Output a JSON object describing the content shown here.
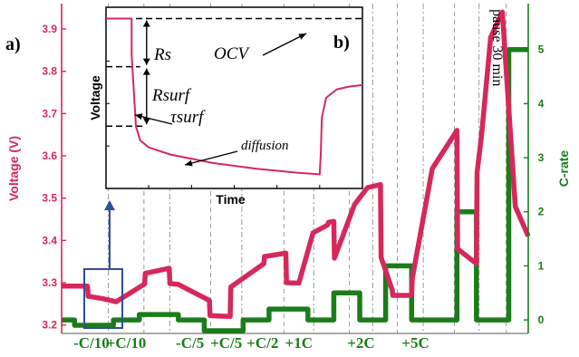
{
  "chart_data": [
    {
      "type": "line",
      "ylabel": "Voltage (V)",
      "y2label": "C-rate",
      "ylim": [
        3.18,
        3.96
      ],
      "y2lim": [
        -0.25,
        5.85
      ],
      "yticks": [
        "3.2",
        "3.3",
        "3.4",
        "3.5",
        "3.6",
        "3.7",
        "3.8",
        "3.9"
      ],
      "y2ticks": [
        "0",
        "1",
        "2",
        "3",
        "4",
        "5"
      ],
      "xlim": [
        0,
        36
      ],
      "step_labels": [
        "-C/10",
        "+C/10",
        "-C/5",
        "+C/5",
        "+C/2",
        "+1C",
        "+2C",
        "+5C"
      ],
      "pause_label": "pause 30 min",
      "panel_label": "a)",
      "series": [
        {
          "name": "Voltage (V)",
          "color": "#d6285a",
          "x": [
            0,
            2,
            2.05,
            3.2,
            4.2,
            6.4,
            6.45,
            8.3,
            8.35,
            9.0,
            11.4,
            11.45,
            13.0,
            13.05,
            15.6,
            15.65,
            17.3,
            17.35,
            18.3,
            19.4,
            20.5,
            20.6,
            21.0,
            21.05,
            22.6,
            23.6,
            24.6,
            24.65,
            25.5,
            25.55,
            27.0,
            27.05,
            28.6,
            30.5,
            30.55,
            32.0,
            32.05,
            32.4,
            33.1,
            34.0,
            35.0,
            36.0
          ],
          "y": [
            3.292,
            3.292,
            3.268,
            3.262,
            3.255,
            3.297,
            3.322,
            3.334,
            3.298,
            3.296,
            3.258,
            3.222,
            3.22,
            3.29,
            3.345,
            3.362,
            3.37,
            3.3,
            3.299,
            3.418,
            3.436,
            3.443,
            3.445,
            3.358,
            3.485,
            3.525,
            3.532,
            3.36,
            3.283,
            3.27,
            3.27,
            3.31,
            3.57,
            3.66,
            3.38,
            3.345,
            3.56,
            3.65,
            3.88,
            3.94,
            3.48,
            3.41
          ]
        },
        {
          "name": "C-rate",
          "color": "#1a7d1a",
          "x": [
            0,
            1,
            1,
            4,
            4,
            6,
            6,
            9,
            9,
            11,
            11,
            14,
            14,
            16,
            16,
            19,
            19,
            21,
            21,
            23,
            23,
            25,
            25,
            27,
            27,
            30.5,
            30.5,
            32,
            32,
            34.5,
            34.5,
            36
          ],
          "y": [
            0,
            0,
            -0.1,
            -0.1,
            0,
            0,
            0.1,
            0.1,
            0,
            0,
            -0.2,
            -0.2,
            0,
            0,
            0.2,
            0.2,
            0,
            0,
            0.5,
            0.5,
            0,
            0,
            1,
            1,
            0,
            0,
            2,
            2,
            0,
            0,
            5,
            5
          ]
        }
      ]
    },
    {
      "type": "line",
      "panel_label": "b)",
      "xlabel": "Time",
      "ylabel": "Voltage",
      "annotations": [
        "OCV",
        "Rs",
        "Rsurf",
        "τsurf",
        "diffusion"
      ],
      "series": [
        {
          "name": "Voltage",
          "color": "#d6285a",
          "x": [
            0,
            12,
            12,
            14,
            16,
            20,
            30,
            50,
            70,
            90,
            100,
            100.5,
            101,
            103,
            108,
            114,
            120
          ],
          "y": [
            1.0,
            1.0,
            0.87,
            0.62,
            0.57,
            0.545,
            0.52,
            0.49,
            0.47,
            0.455,
            0.45,
            0.52,
            0.65,
            0.72,
            0.75,
            0.76,
            0.765
          ]
        }
      ]
    }
  ]
}
